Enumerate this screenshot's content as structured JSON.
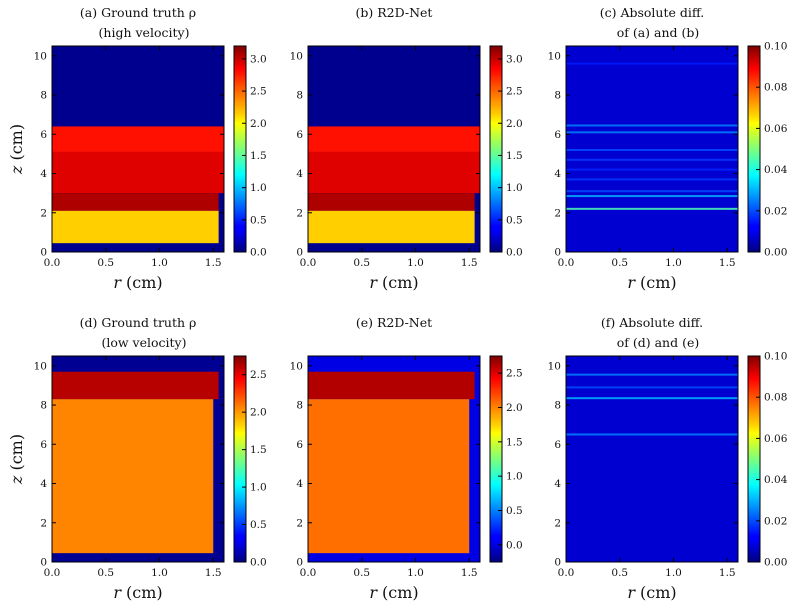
{
  "chart_data": [
    {
      "id": "a",
      "type": "heatmap",
      "title_lines": [
        "(a) Ground truth ρ",
        "(high velocity)"
      ],
      "xlabel": "r (cm)",
      "ylabel": "z (cm)",
      "xlim": [
        0,
        1.6
      ],
      "ylim": [
        0,
        10.5
      ],
      "xticks": [
        "0.0",
        "0.5",
        "1.0",
        "1.5"
      ],
      "yticks": [
        "0",
        "2",
        "4",
        "6",
        "8",
        "10"
      ],
      "colorbar": {
        "colormap": "jet",
        "range": [
          0,
          3.2
        ],
        "ticks": [
          "0.0",
          "0.5",
          "1.0",
          "1.5",
          "2.0",
          "2.5",
          "3.0"
        ]
      },
      "regions": [
        {
          "name": "background",
          "value": 0.05
        },
        {
          "name": "upper-layer",
          "z": [
            5.1,
            6.4
          ],
          "r": [
            0,
            1.6
          ],
          "value": 2.75
        },
        {
          "name": "middle-layer",
          "z": [
            3.0,
            5.1
          ],
          "r": [
            0,
            1.6
          ],
          "value": 2.9
        },
        {
          "name": "lower-dark-layer",
          "z": [
            2.1,
            3.0
          ],
          "r": [
            0,
            1.55
          ],
          "value": 3.05
        },
        {
          "name": "base-layer",
          "z": [
            0.45,
            2.1
          ],
          "r": [
            0,
            1.55
          ],
          "value": 2.15
        }
      ]
    },
    {
      "id": "b",
      "type": "heatmap",
      "title_lines": [
        "(b) R2D-Net"
      ],
      "xlabel": "r (cm)",
      "ylabel": "",
      "xlim": [
        0,
        1.6
      ],
      "ylim": [
        0,
        10.5
      ],
      "xticks": [
        "0.0",
        "0.5",
        "1.0",
        "1.5"
      ],
      "yticks": [
        "0",
        "2",
        "4",
        "6",
        "8",
        "10"
      ],
      "colorbar": {
        "colormap": "jet",
        "range": [
          0,
          3.2
        ],
        "ticks": [
          "0.0",
          "0.5",
          "1.0",
          "1.5",
          "2.0",
          "2.5",
          "3.0"
        ]
      },
      "regions": [
        {
          "name": "background",
          "value": 0.05
        },
        {
          "name": "upper-layer",
          "z": [
            5.1,
            6.4
          ],
          "r": [
            0,
            1.6
          ],
          "value": 2.75
        },
        {
          "name": "middle-layer",
          "z": [
            3.0,
            5.1
          ],
          "r": [
            0,
            1.6
          ],
          "value": 2.9
        },
        {
          "name": "lower-dark-layer",
          "z": [
            2.1,
            3.0
          ],
          "r": [
            0,
            1.55
          ],
          "value": 3.05
        },
        {
          "name": "base-layer",
          "z": [
            0.45,
            2.1
          ],
          "r": [
            0,
            1.55
          ],
          "value": 2.15
        }
      ]
    },
    {
      "id": "c",
      "type": "heatmap",
      "title_lines": [
        "(c) Absolute diff.",
        "of (a) and (b)"
      ],
      "xlabel": "r (cm)",
      "ylabel": "",
      "xlim": [
        0,
        1.6
      ],
      "ylim": [
        0,
        10.5
      ],
      "xticks": [
        "0.0",
        "0.5",
        "1.0",
        "1.5"
      ],
      "yticks": [
        "0",
        "2",
        "4",
        "6",
        "8",
        "10"
      ],
      "colorbar": {
        "colormap": "jet",
        "range": [
          0,
          0.1
        ],
        "ticks": [
          "0.00",
          "0.02",
          "0.04",
          "0.06",
          "0.08",
          "0.10"
        ]
      },
      "background_value": 0.008,
      "streaks": [
        {
          "z": 2.2,
          "value": 0.045
        },
        {
          "z": 2.85,
          "value": 0.03
        },
        {
          "z": 3.1,
          "value": 0.02
        },
        {
          "z": 3.7,
          "value": 0.018
        },
        {
          "z": 4.2,
          "value": 0.016
        },
        {
          "z": 4.7,
          "value": 0.018
        },
        {
          "z": 5.2,
          "value": 0.02
        },
        {
          "z": 6.1,
          "value": 0.025
        },
        {
          "z": 6.45,
          "value": 0.025
        },
        {
          "z": 9.6,
          "value": 0.015
        }
      ]
    },
    {
      "id": "d",
      "type": "heatmap",
      "title_lines": [
        "(d) Ground truth ρ",
        "(low velocity)"
      ],
      "xlabel": "r (cm)",
      "ylabel": "z (cm)",
      "xlim": [
        0,
        1.6
      ],
      "ylim": [
        0,
        10.5
      ],
      "xticks": [
        "0.0",
        "0.5",
        "1.0",
        "1.5"
      ],
      "yticks": [
        "0",
        "2",
        "4",
        "6",
        "8",
        "10"
      ],
      "colorbar": {
        "colormap": "jet",
        "range": [
          0,
          2.75
        ],
        "ticks": [
          "0.0",
          "0.5",
          "1.0",
          "1.5",
          "2.0",
          "2.5"
        ]
      },
      "regions": [
        {
          "name": "background",
          "value": 0.05
        },
        {
          "name": "upper-layer",
          "z": [
            8.3,
            9.7
          ],
          "r": [
            0,
            1.55
          ],
          "value": 2.6
        },
        {
          "name": "main-body",
          "z": [
            0.45,
            8.3
          ],
          "r": [
            0,
            1.5
          ],
          "value": 2.05
        }
      ]
    },
    {
      "id": "e",
      "type": "heatmap",
      "title_lines": [
        "(e) R2D-Net"
      ],
      "xlabel": "r (cm)",
      "ylabel": "",
      "xlim": [
        0,
        1.6
      ],
      "ylim": [
        0,
        10.5
      ],
      "xticks": [
        "0.0",
        "0.5",
        "1.0",
        "1.5"
      ],
      "yticks": [
        "0",
        "2",
        "4",
        "6",
        "8",
        "10"
      ],
      "colorbar": {
        "colormap": "jet",
        "range": [
          -0.25,
          2.75
        ],
        "ticks": [
          "0.0",
          "0.5",
          "1.0",
          "1.5",
          "2.0",
          "2.5"
        ]
      },
      "regions": [
        {
          "name": "background",
          "value": 0.05
        },
        {
          "name": "upper-layer",
          "z": [
            8.3,
            9.7
          ],
          "r": [
            0,
            1.55
          ],
          "value": 2.6
        },
        {
          "name": "main-body",
          "z": [
            0.45,
            8.3
          ],
          "r": [
            0,
            1.5
          ],
          "value": 2.05
        }
      ]
    },
    {
      "id": "f",
      "type": "heatmap",
      "title_lines": [
        "(f) Absolute diff.",
        "of (d) and (e)"
      ],
      "xlabel": "r (cm)",
      "ylabel": "",
      "xlim": [
        0,
        1.6
      ],
      "ylim": [
        0,
        10.5
      ],
      "xticks": [
        "0.0",
        "0.5",
        "1.0",
        "1.5"
      ],
      "yticks": [
        "0",
        "2",
        "4",
        "6",
        "8",
        "10"
      ],
      "colorbar": {
        "colormap": "jet",
        "range": [
          0,
          0.1
        ],
        "ticks": [
          "0.00",
          "0.02",
          "0.04",
          "0.06",
          "0.08",
          "0.10"
        ]
      },
      "background_value": 0.008,
      "streaks": [
        {
          "z": 6.5,
          "value": 0.025
        },
        {
          "z": 8.35,
          "value": 0.03
        },
        {
          "z": 8.9,
          "value": 0.02
        },
        {
          "z": 9.55,
          "value": 0.025
        }
      ]
    }
  ]
}
